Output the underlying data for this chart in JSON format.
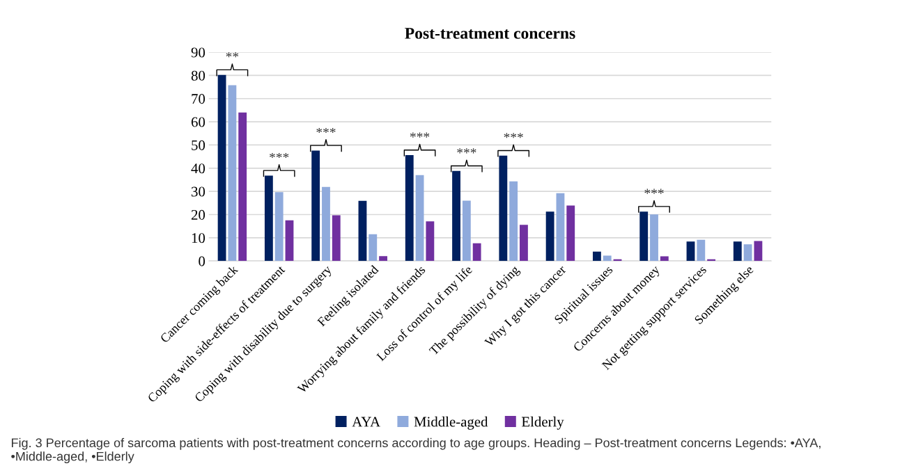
{
  "chart_data": {
    "type": "bar",
    "title": "Post-treatment concerns",
    "categories": [
      "Cancer coming back",
      "Coping with side-effects of treatment",
      "Coping with disability due to surgery",
      "Feeling isolated",
      "Worrying about family and friends",
      "Loss of control of my life",
      "The possibility of dying",
      "Why I got this cancer",
      "Spiritual issues",
      "Concerns about money",
      "Not getting support services",
      "Something else"
    ],
    "series": [
      {
        "name": "AYA",
        "color": "#002060",
        "values": [
          80.2,
          36.8,
          47.6,
          25.9,
          45.6,
          38.8,
          45.4,
          21.3,
          4.0,
          21.3,
          8.4,
          8.4
        ]
      },
      {
        "name": "Middle-aged",
        "color": "#8faadc",
        "values": [
          75.8,
          29.7,
          31.9,
          11.5,
          37.0,
          26.0,
          34.3,
          29.2,
          2.3,
          20.1,
          9.1,
          7.2
        ]
      },
      {
        "name": "Elderly",
        "color": "#7030a0",
        "values": [
          64.0,
          17.5,
          19.7,
          2.1,
          17.1,
          7.6,
          15.6,
          23.9,
          0.7,
          2.0,
          0.7,
          8.6
        ]
      }
    ],
    "ylim": [
      0,
      90
    ],
    "yticks": [
      0,
      10,
      20,
      30,
      40,
      50,
      60,
      70,
      80,
      90
    ],
    "grid": "y",
    "legend": "bottom",
    "annotations": [
      "**",
      "***",
      "***",
      "***",
      "***",
      "***",
      "***",
      "Fig. 3 Percentage of sarcoma patients with post-treatment concerns according to age groups. Heading – Post-treatment concerns Legends: •AYA, •Middle-aged, •Elderly"
    ]
  }
}
